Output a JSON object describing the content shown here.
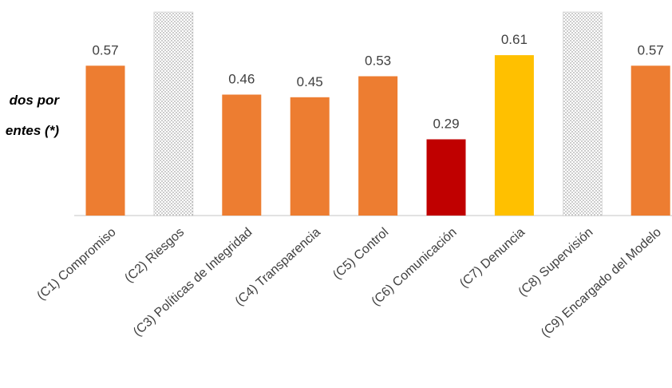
{
  "side_label": {
    "line1": "dos por",
    "line2": "entes (*)"
  },
  "chart_data": {
    "type": "bar",
    "categories": [
      "(C1) Compromiso",
      "(C2) Riesgos",
      "(C3) Políticas de Integridad",
      "(C4) Transparencia",
      "(C5) Control",
      "(C6) Comunicación",
      "(C7) Denuncia",
      "(C8) Supervisión",
      "(C9) Encargado del Modelo"
    ],
    "values": [
      0.57,
      null,
      0.46,
      0.45,
      0.53,
      0.29,
      0.61,
      null,
      0.57
    ],
    "data_labels": [
      "0.57",
      "",
      "0.46",
      "0.45",
      "0.53",
      "0.29",
      "0.61",
      "",
      "0.57"
    ],
    "bar_colors": [
      "#ED7D31",
      "pattern",
      "#ED7D31",
      "#ED7D31",
      "#ED7D31",
      "#C00000",
      "#FFC000",
      "pattern",
      "#ED7D31"
    ],
    "no_data_pattern": "dotted",
    "title": "",
    "xlabel": "",
    "ylabel": "",
    "ylim": [
      0,
      0.82
    ],
    "grid": false,
    "legend": "none"
  }
}
